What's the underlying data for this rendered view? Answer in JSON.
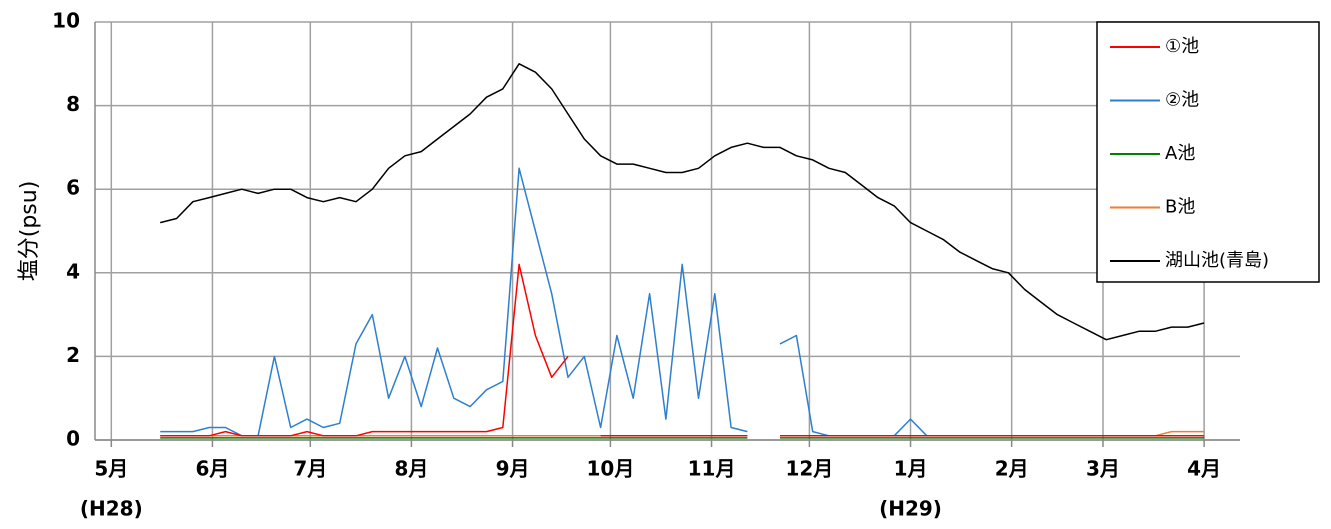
{
  "chart_data": {
    "type": "line",
    "ylabel": "塩分(psu)",
    "x": [
      15,
      20,
      25,
      30,
      35,
      40,
      45,
      50,
      55,
      60,
      65,
      70,
      75,
      80,
      85,
      90,
      95,
      100,
      105,
      110,
      115,
      120,
      125,
      130,
      135,
      140,
      145,
      150,
      155,
      160,
      165,
      170,
      175,
      180,
      185,
      190,
      195,
      200,
      205,
      210,
      215,
      220,
      225,
      230,
      235,
      240,
      245,
      250,
      255,
      260,
      265,
      270,
      275,
      280,
      285,
      290,
      295,
      300,
      305,
      310,
      315,
      320,
      325,
      330,
      335
    ],
    "xlim": [
      -5,
      346
    ],
    "xticks": [
      {
        "value": 0,
        "label": "5月"
      },
      {
        "value": 31,
        "label": "6月"
      },
      {
        "value": 61,
        "label": "7月"
      },
      {
        "value": 92,
        "label": "8月"
      },
      {
        "value": 123,
        "label": "9月"
      },
      {
        "value": 153,
        "label": "10月"
      },
      {
        "value": 184,
        "label": "11月"
      },
      {
        "value": 214,
        "label": "12月"
      },
      {
        "value": 245,
        "label": "1月"
      },
      {
        "value": 276,
        "label": "2月"
      },
      {
        "value": 304,
        "label": "3月"
      },
      {
        "value": 335,
        "label": "4月"
      }
    ],
    "annotations": [
      {
        "x": 0,
        "text": "(H28)"
      },
      {
        "x": 245,
        "text": "(H29)"
      }
    ],
    "ylim": [
      0,
      10
    ],
    "yticks": [
      0,
      2,
      4,
      6,
      8,
      10
    ],
    "grid": true,
    "legend": "upper right",
    "series": [
      {
        "name": "①池",
        "color": "#ff0000",
        "values": [
          0.1,
          0.1,
          0.1,
          0.1,
          0.2,
          0.1,
          0.1,
          0.1,
          0.1,
          0.2,
          0.1,
          0.1,
          0.1,
          0.2,
          0.2,
          0.2,
          0.2,
          0.2,
          0.2,
          0.2,
          0.2,
          0.3,
          4.2,
          2.5,
          1.5,
          2.0,
          null,
          0.1,
          0.1,
          0.1,
          0.1,
          0.1,
          0.1,
          0.1,
          0.1,
          0.1,
          0.1,
          null,
          0.1,
          0.1,
          0.1,
          0.1,
          0.1,
          0.1,
          0.1,
          0.1,
          0.1,
          0.1,
          0.1,
          0.1,
          0.1,
          0.1,
          0.1,
          0.1,
          0.1,
          0.1,
          0.1,
          0.1,
          0.1,
          0.1,
          0.1,
          0.1,
          0.1,
          0.1,
          0.1
        ]
      },
      {
        "name": "②池",
        "color": "#2e7fcf",
        "values": [
          0.2,
          0.2,
          0.2,
          0.3,
          0.3,
          0.1,
          0.1,
          2.0,
          0.3,
          0.5,
          0.3,
          0.4,
          2.3,
          3.0,
          1.0,
          2.0,
          0.8,
          2.2,
          1.0,
          0.8,
          1.2,
          1.4,
          6.5,
          5.0,
          3.5,
          1.5,
          2.0,
          0.3,
          2.5,
          1.0,
          3.5,
          0.5,
          4.2,
          1.0,
          3.5,
          0.3,
          0.2,
          null,
          2.3,
          2.5,
          0.2,
          0.1,
          0.1,
          0.1,
          0.1,
          0.1,
          0.5,
          0.1,
          0.1,
          0.1,
          0.1,
          0.1,
          0.1,
          0.1,
          0.1,
          0.1,
          0.1,
          0.1,
          0.1,
          0.1,
          0.1,
          0.1,
          0.1,
          0.1,
          0.1
        ]
      },
      {
        "name": "A池",
        "color": "#008000",
        "values": [
          0.05,
          0.05,
          0.05,
          0.05,
          0.05,
          0.05,
          0.05,
          0.05,
          0.05,
          0.05,
          0.05,
          0.05,
          0.05,
          0.05,
          0.05,
          0.05,
          0.05,
          0.05,
          0.05,
          0.05,
          0.05,
          0.05,
          0.05,
          0.05,
          0.05,
          0.05,
          0.05,
          0.05,
          0.05,
          0.05,
          0.05,
          0.05,
          0.05,
          0.05,
          0.05,
          0.05,
          0.05,
          null,
          0.05,
          0.05,
          0.05,
          0.05,
          0.05,
          0.05,
          0.05,
          0.05,
          0.05,
          0.05,
          0.05,
          0.05,
          0.05,
          0.05,
          0.05,
          0.05,
          0.05,
          0.05,
          0.05,
          0.05,
          0.05,
          0.05,
          0.05,
          0.05,
          0.05,
          0.05,
          0.05
        ]
      },
      {
        "name": "B池",
        "color": "#ed7d31",
        "values": [
          0.1,
          0.1,
          0.1,
          0.1,
          0.1,
          0.1,
          0.1,
          0.1,
          0.1,
          0.1,
          0.1,
          0.1,
          0.1,
          0.1,
          0.1,
          0.1,
          0.1,
          0.1,
          0.1,
          0.1,
          0.1,
          0.1,
          0.1,
          0.1,
          0.1,
          0.1,
          0.1,
          0.1,
          0.1,
          0.1,
          0.1,
          0.1,
          0.1,
          0.1,
          0.1,
          0.1,
          0.1,
          null,
          0.1,
          0.1,
          0.1,
          0.1,
          0.1,
          0.1,
          0.1,
          0.1,
          0.1,
          0.1,
          0.1,
          0.1,
          0.1,
          0.1,
          0.1,
          0.1,
          0.1,
          0.1,
          0.1,
          0.1,
          0.1,
          0.1,
          0.1,
          0.1,
          0.2,
          0.2,
          0.2
        ]
      },
      {
        "name": "湖山池(青島)",
        "color": "#000000",
        "values": [
          5.2,
          5.3,
          5.7,
          5.8,
          5.9,
          6.0,
          5.9,
          6.0,
          6.0,
          5.8,
          5.7,
          5.8,
          5.7,
          6.0,
          6.5,
          6.8,
          6.9,
          7.2,
          7.5,
          7.8,
          8.2,
          8.4,
          9.0,
          8.8,
          8.4,
          7.8,
          7.2,
          6.8,
          6.6,
          6.6,
          6.5,
          6.4,
          6.4,
          6.5,
          6.8,
          7.0,
          7.1,
          7.0,
          7.0,
          6.8,
          6.7,
          6.5,
          6.4,
          6.1,
          5.8,
          5.6,
          5.2,
          5.0,
          4.8,
          4.5,
          4.3,
          4.1,
          4.0,
          3.6,
          3.3,
          3.0,
          2.8,
          2.6,
          2.4,
          2.5,
          2.6,
          2.6,
          2.7,
          2.7,
          2.8
        ]
      }
    ]
  }
}
